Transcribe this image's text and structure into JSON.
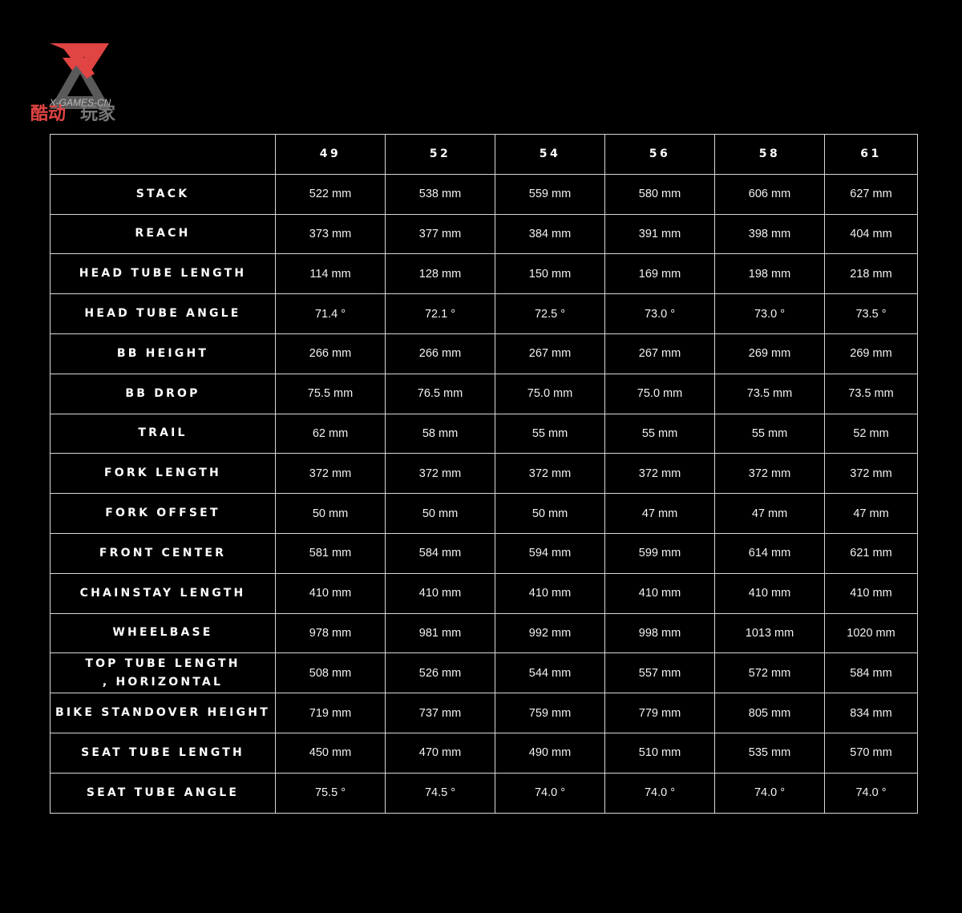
{
  "logo": {
    "text": "X-GAMES-CN",
    "chinese": "酷动玩家",
    "colors": {
      "red": "#e04443",
      "gray": "#5a5a5a"
    }
  },
  "table": {
    "sizes": [
      "49",
      "52",
      "54",
      "56",
      "58",
      "61"
    ],
    "rows": [
      {
        "label": "STACK",
        "values": [
          "522 mm",
          "538 mm",
          "559 mm",
          "580 mm",
          "606 mm",
          "627 mm"
        ]
      },
      {
        "label": "REACH",
        "values": [
          "373 mm",
          "377 mm",
          "384 mm",
          "391 mm",
          "398 mm",
          "404 mm"
        ]
      },
      {
        "label": "HEAD TUBE LENGTH",
        "values": [
          "114 mm",
          "128 mm",
          "150 mm",
          "169 mm",
          "198 mm",
          "218 mm"
        ]
      },
      {
        "label": "HEAD TUBE ANGLE",
        "values": [
          "71.4 °",
          "72.1 °",
          "72.5 °",
          "73.0 °",
          "73.0 °",
          "73.5 °"
        ]
      },
      {
        "label": "BB HEIGHT",
        "values": [
          "266 mm",
          "266 mm",
          "267 mm",
          "267 mm",
          "269 mm",
          "269 mm"
        ]
      },
      {
        "label": "BB DROP",
        "values": [
          "75.5 mm",
          "76.5 mm",
          "75.0 mm",
          "75.0 mm",
          "73.5 mm",
          "73.5 mm"
        ]
      },
      {
        "label": "TRAIL",
        "values": [
          "62 mm",
          "58 mm",
          "55 mm",
          "55 mm",
          "55 mm",
          "52 mm"
        ]
      },
      {
        "label": "FORK LENGTH",
        "values": [
          "372 mm",
          "372 mm",
          "372 mm",
          "372 mm",
          "372 mm",
          "372 mm"
        ]
      },
      {
        "label": "FORK OFFSET",
        "values": [
          "50 mm",
          "50 mm",
          "50 mm",
          "47 mm",
          "47 mm",
          "47 mm"
        ]
      },
      {
        "label": "FRONT CENTER",
        "values": [
          "581 mm",
          "584 mm",
          "594 mm",
          "599 mm",
          "614 mm",
          "621 mm"
        ]
      },
      {
        "label": "CHAINSTAY LENGTH",
        "values": [
          "410 mm",
          "410 mm",
          "410 mm",
          "410 mm",
          "410 mm",
          "410 mm"
        ]
      },
      {
        "label": "WHEELBASE",
        "values": [
          "978 mm",
          "981 mm",
          "992  mm",
          "998 mm",
          "1013 mm",
          "1020 mm"
        ]
      },
      {
        "label": "TOP TUBE LENGTH , HORIZONTAL",
        "values": [
          "508 mm",
          "526 mm",
          "544 mm",
          "557 mm",
          "572 mm",
          "584 mm"
        ]
      },
      {
        "label": "BIKE STANDOVER HEIGHT",
        "values": [
          "719 mm",
          "737 mm",
          "759 mm",
          "779 mm",
          "805 mm",
          "834 mm"
        ]
      },
      {
        "label": "SEAT TUBE LENGTH",
        "values": [
          "450 mm",
          "470 mm",
          "490 mm",
          "510 mm",
          "535 mm",
          "570 mm"
        ]
      },
      {
        "label": "SEAT TUBE ANGLE",
        "values": [
          "75.5 °",
          "74.5 °",
          "74.0 °",
          "74.0 °",
          "74.0 °",
          "74.0 °"
        ]
      }
    ]
  }
}
